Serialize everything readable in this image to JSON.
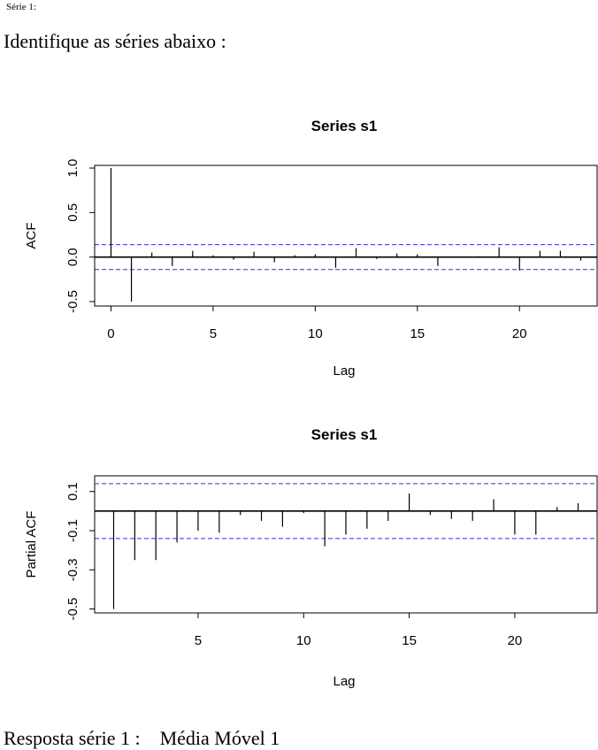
{
  "page": {
    "top_label": "Série 1:",
    "heading": "Identifique as séries abaixo :",
    "answer_label": "Resposta série 1 :",
    "answer_value": "Média Móvel 1"
  },
  "colors": {
    "bars": "#000000",
    "ci": "#3333cc",
    "frame": "#000000"
  },
  "chart_data": [
    {
      "type": "bar",
      "title": "Series  s1",
      "xlabel": "Lag",
      "ylabel": "ACF",
      "xlim": [
        -0.8,
        23.8
      ],
      "ylim": [
        -0.55,
        1.03
      ],
      "xticks": [
        0,
        5,
        10,
        15,
        20
      ],
      "yticks": [
        -0.5,
        0.0,
        0.5,
        1.0
      ],
      "ytick_labels": [
        "-0.5",
        "0.0",
        "0.5",
        "1.0"
      ],
      "ci": 0.14,
      "x": [
        0,
        1,
        2,
        3,
        4,
        5,
        6,
        7,
        8,
        9,
        10,
        11,
        12,
        13,
        14,
        15,
        16,
        17,
        18,
        19,
        20,
        21,
        22,
        23
      ],
      "values": [
        1.0,
        -0.5,
        0.05,
        -0.1,
        0.07,
        0.02,
        -0.03,
        0.06,
        -0.06,
        0.02,
        0.03,
        -0.12,
        0.1,
        -0.02,
        0.04,
        0.03,
        -0.1,
        0.01,
        0.01,
        0.11,
        -0.15,
        0.07,
        0.07,
        -0.04
      ]
    },
    {
      "type": "bar",
      "title": "Series  s1",
      "xlabel": "Lag",
      "ylabel": "Partial ACF",
      "xlim": [
        0.1,
        23.9
      ],
      "ylim": [
        -0.52,
        0.18
      ],
      "xticks": [
        5,
        10,
        15,
        20
      ],
      "yticks": [
        -0.5,
        -0.3,
        -0.1,
        0.1
      ],
      "ytick_labels": [
        "-0.5",
        "-0.3",
        "-0.1",
        "0.1"
      ],
      "ci": 0.14,
      "x": [
        1,
        2,
        3,
        4,
        5,
        6,
        7,
        8,
        9,
        10,
        11,
        12,
        13,
        14,
        15,
        16,
        17,
        18,
        19,
        20,
        21,
        22,
        23
      ],
      "values": [
        -0.5,
        -0.25,
        -0.25,
        -0.16,
        -0.1,
        -0.11,
        -0.02,
        -0.05,
        -0.08,
        -0.01,
        -0.18,
        -0.12,
        -0.09,
        -0.05,
        0.09,
        -0.02,
        -0.04,
        -0.05,
        0.06,
        -0.12,
        -0.12,
        0.02,
        0.04
      ]
    }
  ]
}
